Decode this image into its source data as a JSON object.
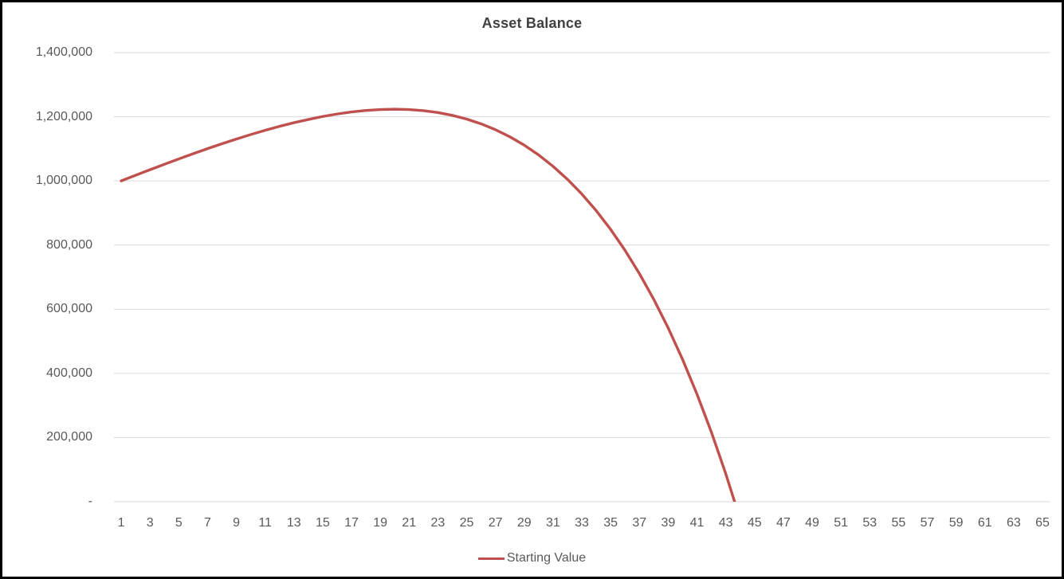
{
  "window": {
    "background": "#FFFFFF",
    "border_color": "#000000"
  },
  "chart_data": {
    "type": "line",
    "title": "Asset Balance",
    "grid": true,
    "legend_position": "bottom",
    "x_axis": {
      "count": 65,
      "first_category": 1,
      "last_category": 65,
      "tick_step": 2,
      "tick_labels": [
        "1",
        "3",
        "5",
        "7",
        "9",
        "11",
        "13",
        "15",
        "17",
        "19",
        "21",
        "23",
        "25",
        "27",
        "29",
        "31",
        "33",
        "35",
        "37",
        "39",
        "41",
        "43",
        "45",
        "47",
        "49",
        "51",
        "53",
        "55",
        "57",
        "59",
        "61",
        "63",
        "65"
      ]
    },
    "y_axis": {
      "min": 0,
      "max": 1400000,
      "tick_values": [
        0,
        200000,
        400000,
        600000,
        800000,
        1000000,
        1200000,
        1400000
      ],
      "tick_labels": [
        "-",
        "200,000",
        "400,000",
        "600,000",
        "800,000",
        "1,000,000",
        "1,200,000",
        "1,400,000"
      ]
    },
    "series": [
      {
        "name": "Starting Value",
        "color": "#C0504D",
        "x_start": 1,
        "values": [
          1000000,
          1017500,
          1034775,
          1051773,
          1068439,
          1084711,
          1100524,
          1115808,
          1130488,
          1144479,
          1157695,
          1170040,
          1181413,
          1191287,
          1200792,
          1208554,
          1214853,
          1219545,
          1222472,
          1223466,
          1222351,
          1218933,
          1213005,
          1204353,
          1192736,
          1177905,
          1159594,
          1137515,
          1111361,
          1080806,
          1045500,
          1005071,
          959123,
          907229,
          848939,
          783769,
          711206,
          630701,
          541671,
          443493,
          335504,
          216998,
          87222,
          -54624
        ]
      }
    ],
    "annotations": {
      "peak_value_approx": 1223466,
      "peak_period": 20,
      "zero_crossing_period_approx": 44
    },
    "colors": {
      "line": "#C0504D",
      "gridline": "#D9D9D9",
      "axis_text": "#595959",
      "title_text": "#404040"
    }
  }
}
